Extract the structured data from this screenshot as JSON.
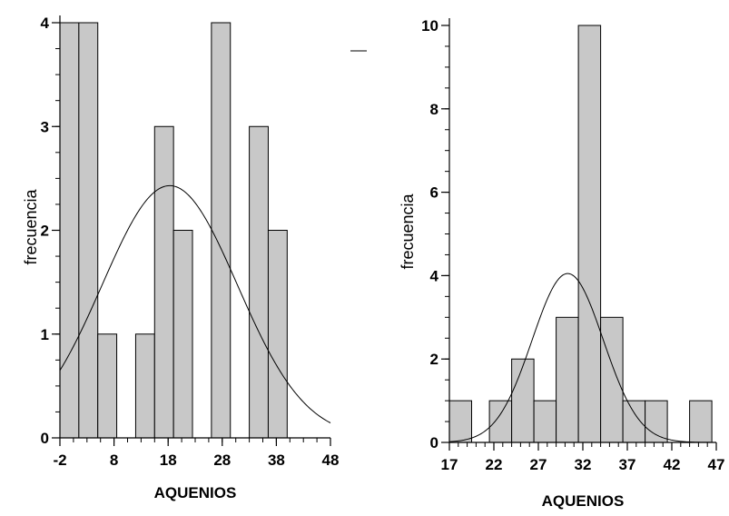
{
  "chart_data": [
    {
      "type": "bar",
      "xlabel": "AQUENIOS",
      "ylabel": "frecuencia",
      "xlim": [
        -2,
        48
      ],
      "ylim": [
        0,
        4
      ],
      "x_ticks": [
        -2,
        8,
        18,
        28,
        38,
        48
      ],
      "y_ticks": [
        0,
        1,
        2,
        3,
        4
      ],
      "bars": [
        {
          "x0": -2,
          "x1": 1.5,
          "value": 4
        },
        {
          "x0": 1.5,
          "x1": 5,
          "value": 4
        },
        {
          "x0": 5,
          "x1": 8.5,
          "value": 1
        },
        {
          "x0": 12,
          "x1": 15.5,
          "value": 1
        },
        {
          "x0": 15.5,
          "x1": 19,
          "value": 3
        },
        {
          "x0": 19,
          "x1": 22.5,
          "value": 2
        },
        {
          "x0": 26,
          "x1": 29.5,
          "value": 4
        },
        {
          "x0": 33,
          "x1": 36.5,
          "value": 3
        },
        {
          "x0": 36.5,
          "x1": 40,
          "value": 2
        }
      ],
      "curve": {
        "type": "normal",
        "mean": 18.3,
        "peak": 2.43,
        "sd": 12.5
      }
    },
    {
      "type": "bar",
      "xlabel": "AQUENIOS",
      "ylabel": "frecuencia",
      "xlim": [
        17,
        47
      ],
      "ylim": [
        0,
        10
      ],
      "x_ticks": [
        17,
        22,
        27,
        32,
        37,
        42,
        47
      ],
      "y_ticks": [
        0,
        2,
        4,
        6,
        8,
        10
      ],
      "bars": [
        {
          "x0": 17,
          "x1": 19.5,
          "value": 1
        },
        {
          "x0": 21.5,
          "x1": 24,
          "value": 1
        },
        {
          "x0": 24,
          "x1": 26.5,
          "value": 2
        },
        {
          "x0": 26.5,
          "x1": 29,
          "value": 1
        },
        {
          "x0": 29,
          "x1": 31.5,
          "value": 3
        },
        {
          "x0": 31.5,
          "x1": 34,
          "value": 10
        },
        {
          "x0": 34,
          "x1": 36.5,
          "value": 3
        },
        {
          "x0": 36.5,
          "x1": 39,
          "value": 1
        },
        {
          "x0": 39,
          "x1": 41.5,
          "value": 1
        },
        {
          "x0": 44,
          "x1": 46.5,
          "value": 1
        }
      ],
      "curve": {
        "type": "normal",
        "mean": 30.3,
        "peak": 4.05,
        "sd": 4.0
      }
    }
  ]
}
